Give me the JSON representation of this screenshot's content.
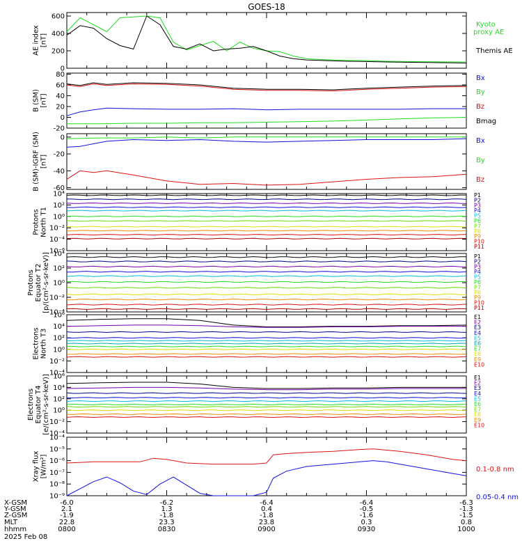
{
  "title": "GOES-18",
  "colors": {
    "black": "#000000",
    "green": "#22dd22",
    "blue": "#1111dd",
    "red": "#dd1111",
    "navy": "#000088",
    "purple": "#7700aa",
    "cyan": "#00bbdd",
    "teal": "#00aaaa",
    "yellow": "#dddd00",
    "orange": "#ee8800",
    "darkred": "#aa0000",
    "lime": "#66dd00"
  },
  "x_axis": {
    "range": [
      0,
      120
    ],
    "ticks": [
      {
        "t": 0,
        "x_gsm": "-6.0",
        "y_gsm": "2.1",
        "z_gsm": "-1.9",
        "mlt": "22.8",
        "hhmm": "0800"
      },
      {
        "t": 30,
        "x_gsm": "-6.2",
        "y_gsm": "1.3",
        "z_gsm": "-1.8",
        "mlt": "23.3",
        "hhmm": "0830"
      },
      {
        "t": 60,
        "x_gsm": "-6.4",
        "y_gsm": "0.4",
        "z_gsm": "-1.8",
        "mlt": "23.8",
        "hhmm": "0900"
      },
      {
        "t": 90,
        "x_gsm": "-6.4",
        "y_gsm": "-0.5",
        "z_gsm": "-1.6",
        "mlt": "0.3",
        "hhmm": "0930"
      },
      {
        "t": 120,
        "x_gsm": "-6.3",
        "y_gsm": "-1.3",
        "z_gsm": "-1.5",
        "mlt": "0.8",
        "hhmm": "1000"
      }
    ],
    "row_labels": [
      "X-GSM",
      "Y-GSM",
      "Z-GSM",
      "MLT",
      "hhmm"
    ],
    "date": "2025 Feb 08"
  },
  "chart_data": [
    {
      "type": "line",
      "id": "ae",
      "ylabel": [
        "AE index",
        "[nT]"
      ],
      "ylim": [
        0,
        640
      ],
      "yticks": [
        "0",
        "200",
        "400",
        "600"
      ],
      "ytick_values": [
        0,
        200,
        400,
        600
      ],
      "series": [
        {
          "name": "Kyoto proxy AE",
          "color": "green",
          "t": [
            0,
            4,
            8,
            12,
            16,
            20,
            24,
            28,
            32,
            36,
            40,
            44,
            48,
            52,
            56,
            60,
            64,
            68,
            72,
            76,
            80,
            84,
            88,
            92,
            96,
            100,
            104,
            108,
            112,
            116,
            120
          ],
          "values": [
            420,
            580,
            500,
            420,
            580,
            590,
            600,
            580,
            300,
            210,
            260,
            310,
            200,
            300,
            230,
            200,
            190,
            140,
            110,
            100,
            95,
            90,
            90,
            85,
            80,
            78,
            76,
            75,
            74,
            73,
            72
          ]
        },
        {
          "name": "Themis AE",
          "color": "black",
          "t": [
            0,
            4,
            8,
            12,
            16,
            20,
            24,
            28,
            32,
            36,
            40,
            44,
            48,
            52,
            56,
            60,
            64,
            68,
            72,
            76,
            80,
            84,
            88,
            92,
            96,
            100,
            104,
            108,
            112,
            116,
            120
          ],
          "values": [
            380,
            490,
            460,
            340,
            260,
            220,
            600,
            500,
            250,
            220,
            280,
            200,
            220,
            230,
            250,
            200,
            140,
            110,
            95,
            90,
            85,
            80,
            78,
            75,
            72,
            70,
            68,
            66,
            64,
            62,
            60
          ]
        }
      ]
    },
    {
      "type": "line",
      "id": "bsm",
      "ylabel": [
        "B (SM)",
        "[nT]"
      ],
      "ylim": [
        -20,
        82
      ],
      "yticks": [
        "-20",
        "0",
        "20",
        "40",
        "60",
        "80"
      ],
      "ytick_values": [
        -20,
        0,
        20,
        40,
        60,
        80
      ],
      "series": [
        {
          "name": "Bx",
          "color": "blue",
          "t": [
            0,
            4,
            8,
            12,
            20,
            30,
            40,
            50,
            60,
            70,
            80,
            90,
            100,
            110,
            120
          ],
          "values": [
            3,
            10,
            14,
            17,
            16,
            15,
            15,
            16,
            14,
            15,
            15,
            15,
            15,
            16,
            16
          ]
        },
        {
          "name": "By",
          "color": "green",
          "t": [
            0,
            10,
            20,
            30,
            40,
            50,
            60,
            70,
            80,
            90,
            100,
            110,
            120
          ],
          "values": [
            -12,
            -12,
            -11,
            -11,
            -10,
            -10,
            -9,
            -8,
            -7,
            -5,
            -3,
            -1,
            0
          ]
        },
        {
          "name": "Bz",
          "color": "red",
          "t": [
            0,
            4,
            8,
            12,
            20,
            30,
            40,
            50,
            60,
            70,
            80,
            90,
            100,
            110,
            120
          ],
          "values": [
            60,
            57,
            62,
            59,
            62,
            61,
            58,
            52,
            50,
            50,
            49,
            52,
            54,
            56,
            57
          ]
        },
        {
          "name": "Bmag",
          "color": "black",
          "t": [
            0,
            4,
            8,
            12,
            20,
            30,
            40,
            50,
            60,
            70,
            80,
            90,
            100,
            110,
            120
          ],
          "values": [
            62,
            59,
            64,
            61,
            64,
            63,
            60,
            54,
            52,
            52,
            51,
            54,
            56,
            58,
            59
          ]
        }
      ]
    },
    {
      "type": "line",
      "id": "bdiff",
      "ylabel": [
        "B (SM)-IGRF (SM)",
        "[nT]"
      ],
      "ylim": [
        -62,
        4
      ],
      "yticks": [
        "-60",
        "-40",
        "-20",
        "0"
      ],
      "ytick_values": [
        -60,
        -40,
        -20,
        0
      ],
      "series": [
        {
          "name": "Bx",
          "color": "blue",
          "t": [
            0,
            4,
            8,
            12,
            20,
            30,
            40,
            50,
            60,
            70,
            80,
            90,
            100,
            110,
            120
          ],
          "values": [
            -12,
            -11,
            -8,
            -5,
            -3,
            -4,
            -3,
            -5,
            -6,
            -5,
            -4,
            -3,
            -3,
            -3,
            -2
          ]
        },
        {
          "name": "By",
          "color": "green",
          "t": [
            0,
            10,
            20,
            30,
            40,
            50,
            60,
            70,
            80,
            90,
            100,
            110,
            120
          ],
          "values": [
            -2,
            -1,
            -1,
            0,
            -1,
            0,
            0,
            0,
            0,
            0,
            0,
            0,
            0
          ]
        },
        {
          "name": "Bz",
          "color": "red",
          "t": [
            0,
            4,
            8,
            12,
            20,
            30,
            40,
            50,
            60,
            70,
            80,
            90,
            100,
            110,
            120
          ],
          "values": [
            -50,
            -40,
            -42,
            -40,
            -45,
            -52,
            -56,
            -55,
            -57,
            -56,
            -53,
            -50,
            -48,
            -47,
            -44
          ]
        }
      ]
    },
    {
      "type": "line",
      "id": "p_north",
      "log": true,
      "ylabel": [
        "Protons",
        "North T1"
      ],
      "ylim": [
        -6,
        4
      ],
      "yticks": [
        "10⁴",
        "10²",
        "10⁰",
        "10⁻²",
        "10⁻⁴",
        "10⁻⁶"
      ],
      "ytick_values": [
        4,
        2,
        0,
        -2,
        -4,
        -6
      ],
      "series": [
        {
          "name": "P1",
          "color": "black",
          "level": 3.7
        },
        {
          "name": "P2",
          "color": "navy",
          "level": 3.0
        },
        {
          "name": "P3",
          "color": "purple",
          "level": 2.3
        },
        {
          "name": "P4",
          "color": "blue",
          "level": 1.6
        },
        {
          "name": "P5",
          "color": "cyan",
          "level": 1.0
        },
        {
          "name": "P6",
          "color": "green",
          "level": 0.0
        },
        {
          "name": "P7",
          "color": "lime",
          "level": -0.8
        },
        {
          "name": "P8",
          "color": "yellow",
          "level": -1.8
        },
        {
          "name": "P9",
          "color": "orange",
          "level": -2.5
        },
        {
          "name": "P10",
          "color": "red",
          "level": -3.2
        },
        {
          "name": "P11",
          "color": "darkred",
          "level": -3.9
        }
      ]
    },
    {
      "type": "line",
      "id": "p_equator",
      "log": true,
      "ylabel": [
        "Protons",
        "Equator T2",
        "[p/(cm²-s-sr-keV)]"
      ],
      "ylim": [
        -4,
        4
      ],
      "yticks": [
        "10⁴",
        "10²",
        "10⁰",
        "10⁻²",
        "10⁻⁴"
      ],
      "ytick_values": [
        4,
        2,
        0,
        -2,
        -4
      ],
      "series": [
        {
          "name": "P1",
          "color": "black",
          "level": 3.5
        },
        {
          "name": "P2",
          "color": "navy",
          "level": 2.9
        },
        {
          "name": "P3",
          "color": "purple",
          "level": 2.2
        },
        {
          "name": "P4",
          "color": "blue",
          "level": 1.5
        },
        {
          "name": "P5",
          "color": "cyan",
          "level": 0.9
        },
        {
          "name": "P6",
          "color": "green",
          "level": 0.1
        },
        {
          "name": "P7",
          "color": "lime",
          "level": -0.7
        },
        {
          "name": "P8",
          "color": "yellow",
          "level": -1.6
        },
        {
          "name": "P9",
          "color": "orange",
          "level": -2.3
        },
        {
          "name": "P10",
          "color": "red",
          "level": -3.0
        },
        {
          "name": "P11",
          "color": "darkred",
          "level": -3.6
        }
      ]
    },
    {
      "type": "line",
      "id": "e_north",
      "log": true,
      "ylabel": [
        "Electrons",
        "North T3"
      ],
      "ylim": [
        -4,
        6
      ],
      "yticks": [
        "10⁶",
        "10⁴",
        "10²",
        "10⁰",
        "10⁻²",
        "10⁻⁴"
      ],
      "ytick_values": [
        6,
        4,
        2,
        0,
        -2,
        -4
      ],
      "series": [
        {
          "name": "E1",
          "color": "black",
          "t": [
            0,
            10,
            20,
            30,
            40,
            50,
            60,
            70,
            80,
            90,
            100,
            110,
            120
          ],
          "values": [
            5.0,
            5.2,
            5.3,
            5.3,
            5.0,
            4.2,
            3.9,
            3.9,
            4.0,
            4.0,
            4.1,
            4.1,
            4.2
          ]
        },
        {
          "name": "E2",
          "color": "purple",
          "t": [
            0,
            10,
            20,
            30,
            40,
            50,
            60,
            70,
            80,
            90,
            100,
            110,
            120
          ],
          "values": [
            4.0,
            4.1,
            4.2,
            4.2,
            4.1,
            3.9,
            3.8,
            3.8,
            3.9,
            3.9,
            4.0,
            4.0,
            4.0
          ]
        },
        {
          "name": "E3",
          "color": "navy",
          "level": 3.0
        },
        {
          "name": "E4",
          "color": "blue",
          "level": 2.0
        },
        {
          "name": "E5",
          "color": "cyan",
          "level": 1.5
        },
        {
          "name": "E6",
          "color": "teal",
          "level": 1.0
        },
        {
          "name": "E7",
          "color": "green",
          "level": 0.5
        },
        {
          "name": "E8",
          "color": "yellow",
          "level": 0.0
        },
        {
          "name": "E9",
          "color": "orange",
          "level": -0.8
        },
        {
          "name": "E10",
          "color": "red",
          "level": -1.3
        }
      ]
    },
    {
      "type": "line",
      "id": "e_equator",
      "log": true,
      "ylabel": [
        "Electrons",
        "Equator T4",
        "[e/(cm²-s-sr-keV)]"
      ],
      "ylim": [
        -4,
        6
      ],
      "yticks": [
        "10⁶",
        "10⁴",
        "10²",
        "10⁰",
        "10⁻²",
        "10⁻⁴"
      ],
      "ytick_values": [
        6,
        4,
        2,
        0,
        -2,
        -4
      ],
      "series": [
        {
          "name": "E1",
          "color": "black",
          "t": [
            0,
            10,
            20,
            30,
            40,
            50,
            60,
            70,
            80,
            90,
            100,
            110,
            120
          ],
          "values": [
            4.7,
            4.8,
            4.9,
            4.9,
            4.6,
            4.0,
            3.8,
            3.8,
            3.9,
            3.9,
            4.0,
            4.0,
            4.0
          ]
        },
        {
          "name": "E2",
          "color": "purple",
          "t": [
            0,
            10,
            20,
            30,
            40,
            50,
            60,
            70,
            80,
            90,
            100,
            110,
            120
          ],
          "values": [
            3.8,
            3.9,
            4.0,
            4.0,
            3.9,
            3.7,
            3.6,
            3.6,
            3.7,
            3.7,
            3.8,
            3.8,
            3.8
          ]
        },
        {
          "name": "E3",
          "color": "navy",
          "level": 3.0
        },
        {
          "name": "E4",
          "color": "blue",
          "level": 2.2
        },
        {
          "name": "E5",
          "color": "cyan",
          "level": 1.6
        },
        {
          "name": "E6",
          "color": "green",
          "level": 1.0
        },
        {
          "name": "E7",
          "color": "lime",
          "level": 0.6
        },
        {
          "name": "E8",
          "color": "yellow",
          "level": 0.0
        },
        {
          "name": "E9",
          "color": "orange",
          "level": -0.7
        },
        {
          "name": "E10",
          "color": "red",
          "level": -1.2
        }
      ]
    },
    {
      "type": "line",
      "id": "xray",
      "log": true,
      "ylabel": [
        "Xray flux",
        "[W/m²]"
      ],
      "ylim": [
        -9,
        -4
      ],
      "yticks": [
        "10⁻⁴",
        "10⁻⁵",
        "10⁻⁶",
        "10⁻⁷",
        "10⁻⁸",
        "10⁻⁹"
      ],
      "ytick_values": [
        -4,
        -5,
        -6,
        -7,
        -8,
        -9
      ],
      "series": [
        {
          "name": "0.1-0.8 nm",
          "color": "red",
          "t": [
            0,
            8,
            16,
            22,
            26,
            30,
            36,
            44,
            52,
            56,
            60,
            62,
            66,
            72,
            80,
            88,
            92,
            96,
            100,
            108,
            116,
            120
          ],
          "values": [
            -6.2,
            -6.1,
            -6.1,
            -6.1,
            -5.8,
            -5.9,
            -6.2,
            -6.3,
            -6.3,
            -6.3,
            -6.2,
            -5.5,
            -5.4,
            -5.3,
            -5.2,
            -5.05,
            -5.0,
            -5.1,
            -5.2,
            -5.5,
            -5.9,
            -6.0
          ]
        },
        {
          "name": "0.05-0.4 nm",
          "color": "blue",
          "t": [
            0,
            4,
            8,
            12,
            16,
            20,
            24,
            28,
            32,
            36,
            40,
            44,
            48,
            52,
            56,
            60,
            62,
            66,
            72,
            80,
            88,
            92,
            96,
            100,
            108,
            116,
            120
          ],
          "values": [
            -9,
            -8.4,
            -7.8,
            -7.4,
            -7.9,
            -8.6,
            -8.9,
            -8.0,
            -7.4,
            -8.1,
            -8.8,
            -9,
            -9,
            -9,
            -9,
            -8.7,
            -7.5,
            -6.9,
            -6.5,
            -6.3,
            -6.1,
            -6.0,
            -6.1,
            -6.3,
            -6.7,
            -7.1,
            -7.3
          ]
        }
      ]
    }
  ]
}
